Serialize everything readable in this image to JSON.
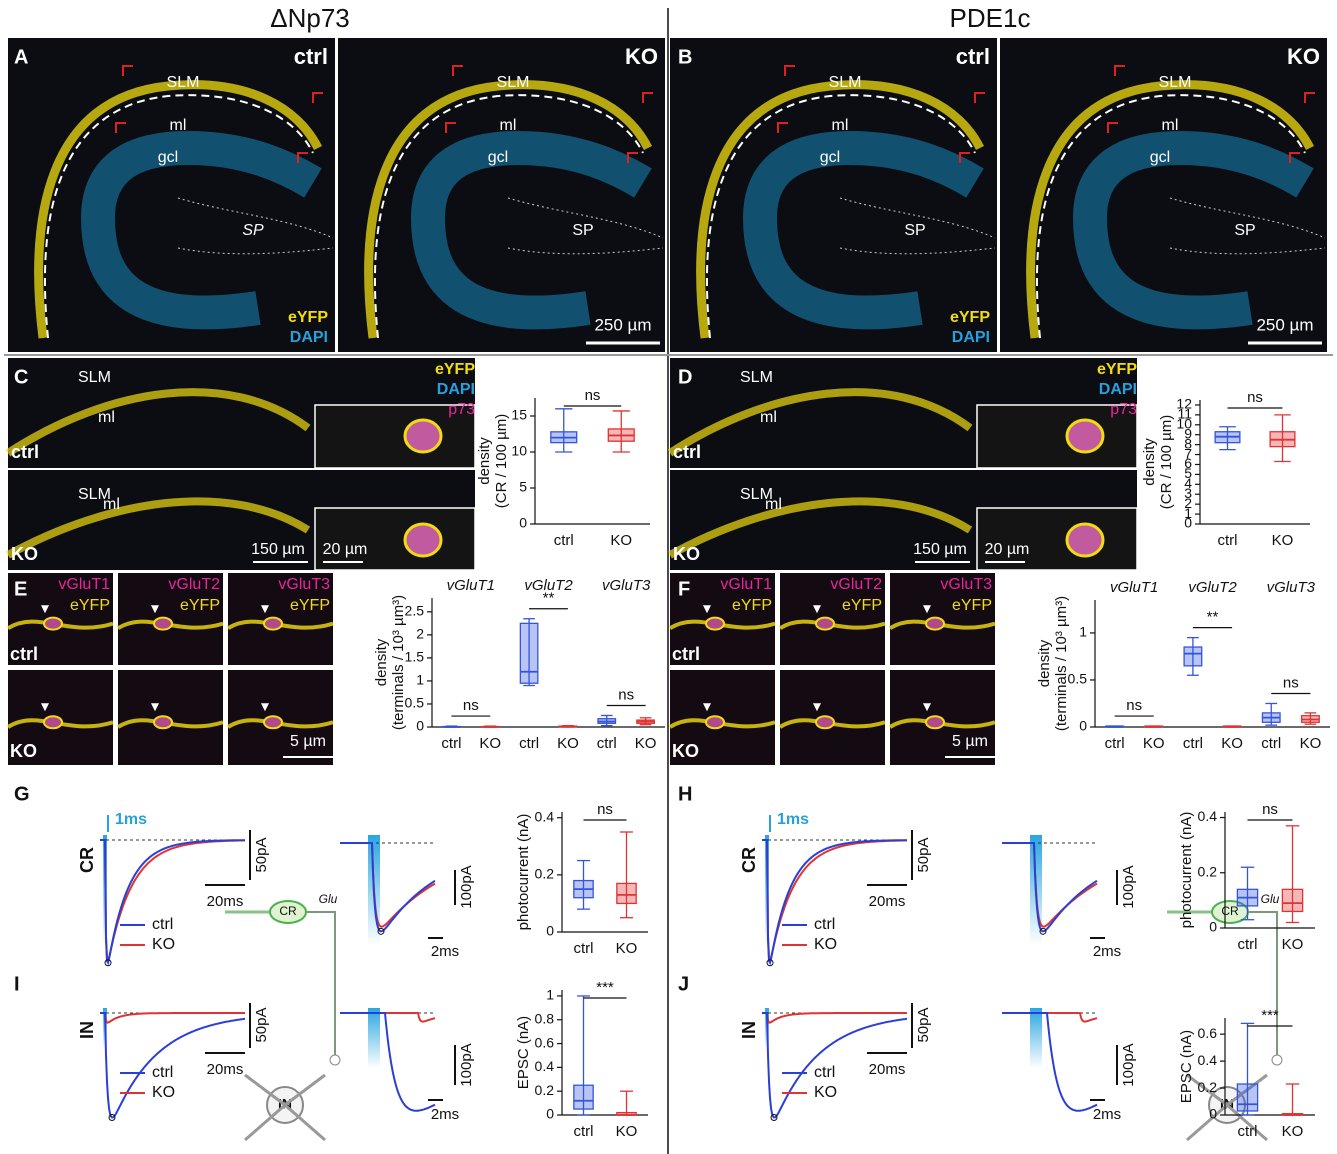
{
  "headers": [
    "ΔNp73",
    "PDE1c"
  ],
  "panel_letters": [
    "A",
    "B",
    "C",
    "D",
    "E",
    "F",
    "G",
    "H",
    "I",
    "J"
  ],
  "hippocampus": {
    "labels": [
      "SLM",
      "ml",
      "gcl",
      "SP"
    ],
    "conditions": [
      "ctrl",
      "KO"
    ],
    "channels": [
      "eYFP",
      "DAPI"
    ],
    "scale": "250 µm"
  },
  "zoom": {
    "labels": [
      "SLM",
      "ml"
    ],
    "conditions": [
      "ctrl",
      "KO"
    ],
    "channels": [
      "eYFP",
      "DAPI",
      "p73"
    ],
    "scales": [
      "150 µm",
      "20 µm"
    ]
  },
  "vglut": {
    "stains": [
      "vGluT1",
      "vGluT2",
      "vGluT3"
    ],
    "counter": "eYFP",
    "conditions": [
      "ctrl",
      "KO"
    ],
    "scale": "5 µm"
  },
  "ephys": {
    "rows": [
      "CR",
      "IN"
    ],
    "stim": "1ms",
    "scales": [
      "50pA",
      "20ms",
      "100pA",
      "2ms"
    ],
    "legend": [
      "ctrl",
      "KO"
    ],
    "schematic": [
      "CR",
      "Glu",
      "IN"
    ]
  },
  "chart_data": [
    {
      "type": "box",
      "ylabel": [
        "density",
        "(CR / 100 µm)"
      ],
      "ylim": [
        0,
        17.5
      ],
      "yticks": [
        0,
        5,
        10,
        15
      ],
      "categories": [
        "ctrl",
        "KO"
      ],
      "colors": [
        "#3355dd",
        "#e03333"
      ],
      "boxes": [
        {
          "min": 10,
          "q1": 11.3,
          "median": 12,
          "q3": 12.8,
          "max": 16
        },
        {
          "min": 10,
          "q1": 11.5,
          "median": 12.3,
          "q3": 13.2,
          "max": 15.7
        }
      ],
      "significance": [
        "ns"
      ]
    },
    {
      "type": "box",
      "ylabel": [
        "density",
        "(CR / 100 µm)"
      ],
      "ylim": [
        0,
        12.5
      ],
      "yticks": [
        0,
        1,
        2,
        3,
        4,
        5,
        6,
        7,
        8,
        9,
        10,
        11,
        12
      ],
      "categories": [
        "ctrl",
        "KO"
      ],
      "colors": [
        "#3355dd",
        "#e03333"
      ],
      "boxes": [
        {
          "min": 7.5,
          "q1": 8.2,
          "median": 8.8,
          "q3": 9.3,
          "max": 9.8
        },
        {
          "min": 6.3,
          "q1": 7.8,
          "median": 8.5,
          "q3": 9.3,
          "max": 11
        }
      ],
      "significance": [
        "ns"
      ]
    },
    {
      "type": "box",
      "ylabel": [
        "density",
        "(terminals / 10³ µm³)"
      ],
      "ylim": [
        0,
        2.8
      ],
      "yticks": [
        0,
        0.5,
        1,
        1.5,
        2,
        2.5
      ],
      "groups": [
        "vGluT1",
        "vGluT2",
        "vGluT3"
      ],
      "categories": [
        "ctrl",
        "KO",
        "ctrl",
        "KO",
        "ctrl",
        "KO"
      ],
      "colors": [
        "#3355dd",
        "#e03333",
        "#3355dd",
        "#e03333",
        "#3355dd",
        "#e03333"
      ],
      "boxes": [
        {
          "min": 0,
          "q1": 0,
          "median": 0,
          "q3": 0.01,
          "max": 0.02
        },
        {
          "min": 0,
          "q1": 0,
          "median": 0,
          "q3": 0.01,
          "max": 0.02
        },
        {
          "min": 0.9,
          "q1": 0.95,
          "median": 1.2,
          "q3": 2.25,
          "max": 2.35
        },
        {
          "min": 0,
          "q1": 0,
          "median": 0.01,
          "q3": 0.02,
          "max": 0.03
        },
        {
          "min": 0.03,
          "q1": 0.08,
          "median": 0.12,
          "q3": 0.18,
          "max": 0.25
        },
        {
          "min": 0.05,
          "q1": 0.08,
          "median": 0.12,
          "q3": 0.15,
          "max": 0.2
        }
      ],
      "significance": [
        "ns",
        "**",
        "ns"
      ]
    },
    {
      "type": "box",
      "ylabel": [
        "density",
        "(terminals / 10³ µm³)"
      ],
      "ylim": [
        0,
        1.35
      ],
      "yticks": [
        0,
        0.5,
        1
      ],
      "groups": [
        "vGluT1",
        "vGluT2",
        "vGluT3"
      ],
      "categories": [
        "ctrl",
        "KO",
        "ctrl",
        "KO",
        "ctrl",
        "KO"
      ],
      "colors": [
        "#3355dd",
        "#e03333",
        "#3355dd",
        "#e03333",
        "#3355dd",
        "#e03333"
      ],
      "boxes": [
        {
          "min": 0,
          "q1": 0,
          "median": 0,
          "q3": 0.01,
          "max": 0.01
        },
        {
          "min": 0,
          "q1": 0,
          "median": 0,
          "q3": 0.01,
          "max": 0.01
        },
        {
          "min": 0.55,
          "q1": 0.65,
          "median": 0.78,
          "q3": 0.85,
          "max": 0.95
        },
        {
          "min": 0,
          "q1": 0,
          "median": 0,
          "q3": 0.01,
          "max": 0.01
        },
        {
          "min": 0.02,
          "q1": 0.05,
          "median": 0.1,
          "q3": 0.15,
          "max": 0.25
        },
        {
          "min": 0.03,
          "q1": 0.05,
          "median": 0.08,
          "q3": 0.12,
          "max": 0.15
        }
      ],
      "significance": [
        "ns",
        "**",
        "ns"
      ]
    },
    {
      "type": "box",
      "ylabel": [
        "photocurrent (nA)"
      ],
      "ylim": [
        0,
        0.42
      ],
      "yticks": [
        0,
        0.2,
        0.4
      ],
      "categories": [
        "ctrl",
        "KO"
      ],
      "colors": [
        "#3355dd",
        "#e03333"
      ],
      "boxes": [
        {
          "min": 0.08,
          "q1": 0.12,
          "median": 0.15,
          "q3": 0.18,
          "max": 0.25
        },
        {
          "min": 0.05,
          "q1": 0.1,
          "median": 0.13,
          "q3": 0.17,
          "max": 0.35
        }
      ],
      "significance": [
        "ns"
      ]
    },
    {
      "type": "box",
      "ylabel": [
        "photocurrent (nA)"
      ],
      "ylim": [
        0,
        0.42
      ],
      "yticks": [
        0,
        0.2,
        0.4
      ],
      "categories": [
        "ctrl",
        "KO"
      ],
      "colors": [
        "#3355dd",
        "#e03333"
      ],
      "boxes": [
        {
          "min": 0.03,
          "q1": 0.08,
          "median": 0.11,
          "q3": 0.14,
          "max": 0.22
        },
        {
          "min": 0.02,
          "q1": 0.06,
          "median": 0.09,
          "q3": 0.14,
          "max": 0.37
        }
      ],
      "significance": [
        "ns"
      ]
    },
    {
      "type": "box",
      "ylabel": [
        "EPSC (nA)"
      ],
      "ylim": [
        0,
        1.05
      ],
      "yticks": [
        0,
        0.2,
        0.4,
        0.6,
        0.8,
        1
      ],
      "categories": [
        "ctrl",
        "KO"
      ],
      "colors": [
        "#3355dd",
        "#e03333"
      ],
      "boxes": [
        {
          "min": 0,
          "q1": 0.05,
          "median": 0.12,
          "q3": 0.25,
          "max": 1
        },
        {
          "min": 0,
          "q1": 0,
          "median": 0,
          "q3": 0.02,
          "max": 0.2
        }
      ],
      "significance": [
        "***"
      ]
    },
    {
      "type": "box",
      "ylabel": [
        "EPSC (nA)"
      ],
      "ylim": [
        0,
        0.72
      ],
      "yticks": [
        0,
        0.2,
        0.4,
        0.6
      ],
      "categories": [
        "ctrl",
        "KO"
      ],
      "colors": [
        "#3355dd",
        "#e03333"
      ],
      "boxes": [
        {
          "min": 0,
          "q1": 0.03,
          "median": 0.08,
          "q3": 0.23,
          "max": 0.68
        },
        {
          "min": 0,
          "q1": 0,
          "median": 0,
          "q3": 0.01,
          "max": 0.23
        }
      ],
      "significance": [
        "***"
      ]
    }
  ]
}
